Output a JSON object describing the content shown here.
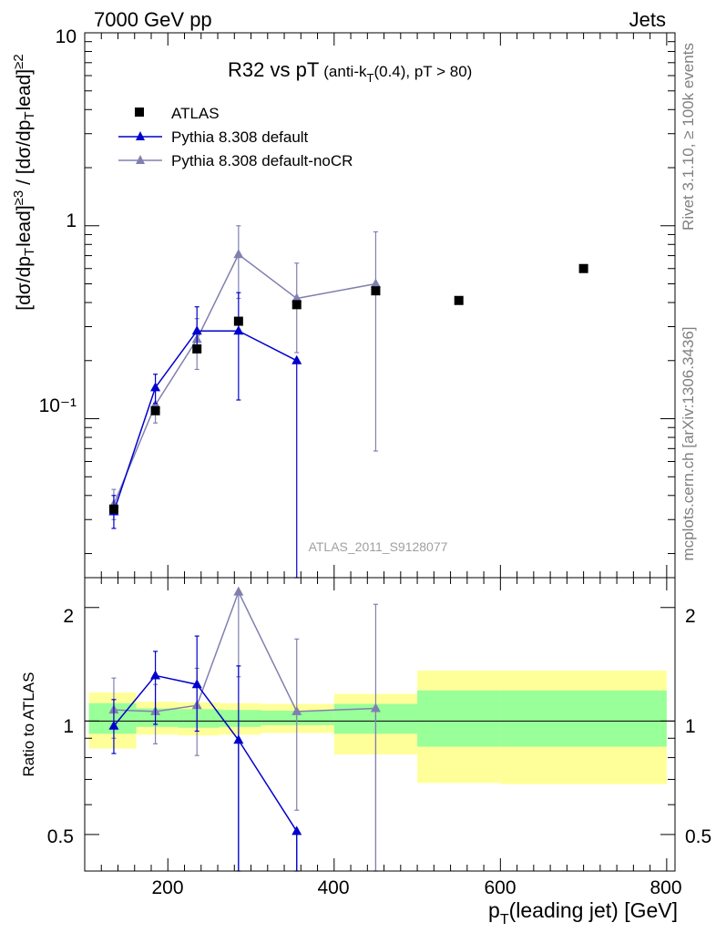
{
  "header": {
    "left": "7000 GeV pp",
    "right": "Jets"
  },
  "side_labels": {
    "rivet": "Rivet 3.1.10, ≥ 100k events",
    "mcplots": "mcplots.cern.ch [arXiv:1306.3436]"
  },
  "chart_data": [
    {
      "type": "scatter",
      "title": "R32 vs pT",
      "title_sub_prefix": "(anti-k",
      "title_sub_sub": "T",
      "title_sub_suffix": "(0.4), pT > 80)",
      "watermark": "ATLAS_2011_S9128077",
      "ylabel": "[dσ/dpᵀlead]≥3 / [dσ/dpᵀlead]≥2",
      "ylabel_parts": {
        "a": "[dσ/dp",
        "sub": "T",
        "b": "ead]",
        "sup1": "≥3",
        "c": " / [dσ/dp",
        "sub2": "T",
        "d": "ead]",
        "sup2": "≥2",
        "l": "l"
      },
      "yscale": "log",
      "ylim": [
        0.015,
        10
      ],
      "xlim": [
        100,
        810
      ],
      "ytick_labels": [
        "10",
        "1",
        "10⁻¹"
      ],
      "legend_position": "top-left",
      "series": [
        {
          "name": "ATLAS",
          "color": "#000000",
          "marker": "square",
          "x": [
            135,
            185,
            235,
            285,
            355,
            450,
            550,
            700
          ],
          "y": [
            0.034,
            0.11,
            0.23,
            0.32,
            0.39,
            0.46,
            0.41,
            0.6
          ]
        },
        {
          "name": "Pythia 8.308 default",
          "color": "#0000cc",
          "marker": "triangle",
          "x": [
            135,
            185,
            235,
            285,
            355
          ],
          "y": [
            0.033,
            0.145,
            0.285,
            0.285,
            0.2
          ],
          "ylo": [
            0.027,
            0.12,
            0.22,
            0.125,
            0.0001
          ],
          "yhi": [
            0.04,
            0.17,
            0.38,
            0.45,
            0.2
          ]
        },
        {
          "name": "Pythia 8.308 default-noCR",
          "color": "#8080b0",
          "marker": "triangle",
          "x": [
            135,
            185,
            235,
            285,
            355,
            450
          ],
          "y": [
            0.036,
            0.118,
            0.258,
            0.71,
            0.42,
            0.5
          ],
          "ylo": [
            0.03,
            0.095,
            0.18,
            0.42,
            0.22,
            0.068
          ],
          "yhi": [
            0.043,
            0.142,
            0.33,
            1.0,
            0.64,
            0.93
          ]
        }
      ]
    },
    {
      "type": "scatter",
      "ylabel": "Ratio to ATLAS",
      "xlabel_main": "p",
      "xlabel_sub": "T",
      "xlabel_rest": "(leading jet) [GeV]",
      "xlim": [
        100,
        810
      ],
      "ylim": [
        0.4,
        2.4
      ],
      "xtick_labels": [
        "200",
        "400",
        "600",
        "800"
      ],
      "ytick_labels": [
        "2",
        "1",
        "0.5"
      ],
      "bands": [
        {
          "x0": 105,
          "x1": 162,
          "y_lo": 0.925,
          "y_hi": 1.115,
          "o_lo": 0.845,
          "o_hi": 1.19
        },
        {
          "x0": 162,
          "x1": 212,
          "y_lo": 0.965,
          "y_hi": 1.08,
          "o_lo": 0.92,
          "o_hi": 1.125
        },
        {
          "x0": 212,
          "x1": 262,
          "y_lo": 0.96,
          "y_hi": 1.075,
          "o_lo": 0.915,
          "o_hi": 1.12
        },
        {
          "x0": 262,
          "x1": 312,
          "y_lo": 0.965,
          "y_hi": 1.07,
          "o_lo": 0.92,
          "o_hi": 1.115
        },
        {
          "x0": 312,
          "x1": 400,
          "y_lo": 0.975,
          "y_hi": 1.065,
          "o_lo": 0.93,
          "o_hi": 1.11
        },
        {
          "x0": 400,
          "x1": 500,
          "y_lo": 0.925,
          "y_hi": 1.11,
          "o_lo": 0.815,
          "o_hi": 1.18
        },
        {
          "x0": 500,
          "x1": 600,
          "y_lo": 0.855,
          "y_hi": 1.205,
          "o_lo": 0.685,
          "o_hi": 1.36
        },
        {
          "x0": 600,
          "x1": 800,
          "y_lo": 0.855,
          "y_hi": 1.205,
          "o_lo": 0.68,
          "o_hi": 1.36
        }
      ],
      "series": [
        {
          "name": "Pythia 8.308 default",
          "color": "#0000cc",
          "marker": "triangle",
          "x": [
            135,
            185,
            235,
            285,
            355
          ],
          "y": [
            0.97,
            1.32,
            1.25,
            0.89,
            0.51
          ],
          "ylo": [
            0.82,
            0.98,
            0.94,
            0.35,
            0.35
          ],
          "yhi": [
            1.14,
            1.53,
            1.68,
            1.4,
            0.51
          ]
        },
        {
          "name": "Pythia 8.308 default-noCR",
          "color": "#8080b0",
          "marker": "triangle",
          "x": [
            135,
            185,
            235,
            285,
            355,
            450
          ],
          "y": [
            1.07,
            1.06,
            1.1,
            2.2,
            1.06,
            1.08
          ],
          "ylo": [
            0.9,
            0.87,
            0.81,
            1.31,
            0.58,
            0.35
          ],
          "yhi": [
            1.3,
            1.25,
            1.38,
            2.2,
            1.65,
            2.04
          ]
        }
      ]
    }
  ]
}
